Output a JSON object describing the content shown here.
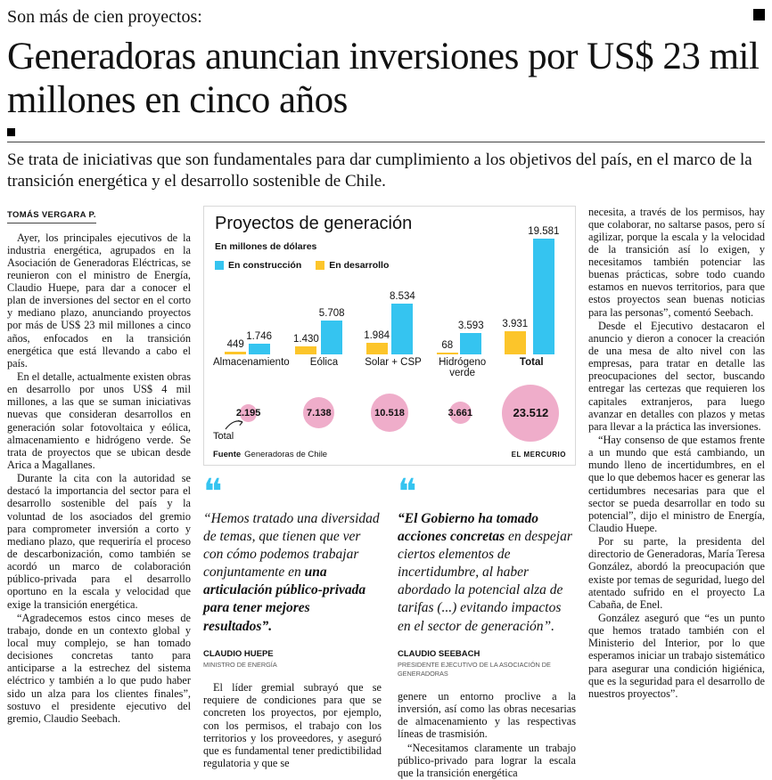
{
  "header": {
    "kicker": "Son más de cien proyectos:",
    "headline": "Generadoras anuncian inversiones por US$ 23 mil millones en cinco años",
    "subhead": "Se trata de iniciativas que son fundamentales para dar cumplimiento a los objetivos del país, en el marco de la transición energética y el desarrollo sostenible de Chile.",
    "byline": "TOMÁS VERGARA P."
  },
  "left_column": {
    "paragraphs": [
      "Ayer, los principales ejecutivos de la industria energética, agrupados en la Asociación de Generadoras Eléctricas, se reunieron con el ministro de Energía, Claudio Huepe, para dar a conocer el plan de inversiones del sector en el corto y mediano plazo, anunciando proyectos por más de US$ 23 mil millones a cinco años, enfocados en la transición energética que está llevando a cabo el país.",
      "En el detalle, actualmente existen obras en desarrollo por unos US$ 4 mil millones, a las que se suman iniciativas nuevas que consideran desarrollos en generación solar fotovoltaica y eólica, almacenamiento e hidrógeno verde. Se trata de proyectos que se ubican desde Arica a Magallanes.",
      "Durante la cita con la autoridad se destacó la importancia del sector para el desarrollo sostenible del país y la voluntad de los asociados del gremio para comprometer inversión a corto y mediano plazo, que requeriría el proceso de descarbonización, como también se acordó un marco de colaboración público-privada para el desarrollo oportuno en la escala y velocidad que exige la transición energética.",
      "“Agradecemos estos cinco meses de trabajo, donde en un contexto global y local muy complejo, se han tomado decisiones concretas tanto para anticiparse a la estrechez del sistema eléctrico y también a lo que pudo haber sido un alza para los clientes finales”, sostuvo el presidente ejecutivo del gremio, Claudio Seebach."
    ]
  },
  "chart_data": {
    "type": "bar",
    "title": "Proyectos de generación",
    "subtitle": "En millones de dólares",
    "categories": [
      "Almacenamiento",
      "Eólica",
      "Solar + CSP",
      "Hidrógeno verde",
      "Total"
    ],
    "series": [
      {
        "name": "En desarrollo",
        "key": "desarrollo",
        "color": "#fcc52a",
        "values": [
          449,
          1430,
          1984,
          68,
          3931
        ],
        "labels": [
          "449",
          "1.430",
          "1.984",
          "68",
          "3.931"
        ]
      },
      {
        "name": "En construcción",
        "key": "construccion",
        "color": "#35c4f0",
        "values": [
          1746,
          5708,
          8534,
          3593,
          19581
        ],
        "labels": [
          "1.746",
          "5.708",
          "8.534",
          "3.593",
          "19.581"
        ]
      }
    ],
    "legend": [
      {
        "label": "En construcción",
        "color": "#35c4f0"
      },
      {
        "label": "En desarrollo",
        "color": "#fcc52a"
      }
    ],
    "totals": {
      "color": "#efadca",
      "values": [
        2195,
        7138,
        10518,
        3661,
        23512
      ],
      "labels": [
        "2.195",
        "7.138",
        "10.518",
        "3.661",
        "23.512"
      ]
    },
    "total_annotation": "Total",
    "ylim": [
      0,
      19581
    ],
    "grid": false,
    "legend_position": "top-left",
    "source_label": "Fuente",
    "source": "Generadoras de Chile",
    "credit": "EL MERCURIO"
  },
  "quotes": [
    {
      "mark": "❝",
      "pre": "“Hemos tratado una diversidad de temas, que tienen que ver con cómo podemos trabajar conjuntamente en ",
      "strong": "una articulación público-privada para tener mejores resultados”.",
      "post": "",
      "name": "CLAUDIO HUEPE",
      "role": "MINISTRO DE ENERGÍA"
    },
    {
      "mark": "❝",
      "pre": "",
      "strong": "“El Gobierno ha tomado acciones concretas ",
      "post": "en despejar ciertos elementos de incertidumbre, al haber abordado la potencial alza de tarifas (...) evitando impactos en el sector de generación”.",
      "name": "CLAUDIO SEEBACH",
      "role": "PRESIDENTE EJECUTIVO DE LA ASOCIACIÓN DE GENERADORAS"
    }
  ],
  "middle_left": {
    "paragraphs": [
      "El líder gremial subrayó que se requiere de condiciones para que se concreten los proyectos, por ejemplo, con los permisos, el trabajo con los territorios y los proveedores, y aseguró que es fundamental tener predictibilidad regulatoria y que se"
    ]
  },
  "middle_right": {
    "paragraphs": [
      "genere un entorno proclive a la inversión, así como las obras necesarias de almacenamiento y las respectivas líneas de trasmisión.",
      "“Necesitamos claramente un trabajo público-privado para lograr la escala que la transición energética"
    ]
  },
  "right_column": {
    "paragraphs": [
      "necesita, a través de los permisos, hay que colaborar, no saltarse pasos, pero sí agilizar, porque la escala y la velocidad de la transición así lo exigen, y necesitamos también potenciar las buenas prácticas, sobre todo cuando estamos en nuevos territorios, para que estos proyectos sean buenas noticias para las personas”, comentó Seebach.",
      "Desde el Ejecutivo destacaron el anuncio y dieron a conocer la creación de una mesa de alto nivel con las empresas, para tratar en detalle las preocupaciones del sector, buscando entregar las certezas que requieren los capitales extranjeros, para luego avanzar en detalles con plazos y metas para llevar a la práctica las inversiones.",
      "“Hay consenso de que estamos frente a un mundo que está cambiando, un mundo lleno de incertidumbres, en el que lo que debemos hacer es generar las certidumbres necesarias para que el sector se pueda desarrollar en todo su potencial”, dijo el ministro de Energía, Claudio Huepe.",
      "Por su parte, la presidenta del directorio de Generadoras, María Teresa González, abordó la preocupación que existe por temas de seguridad, luego del atentado sufrido en el proyecto La Cabaña, de Enel.",
      "González aseguró que “es un punto que hemos tratado también con el Ministerio del Interior, por lo que esperamos iniciar un trabajo sistemático para asegurar una condición higiénica, que es la seguridad para el desarrollo de nuestros proyectos”."
    ]
  }
}
